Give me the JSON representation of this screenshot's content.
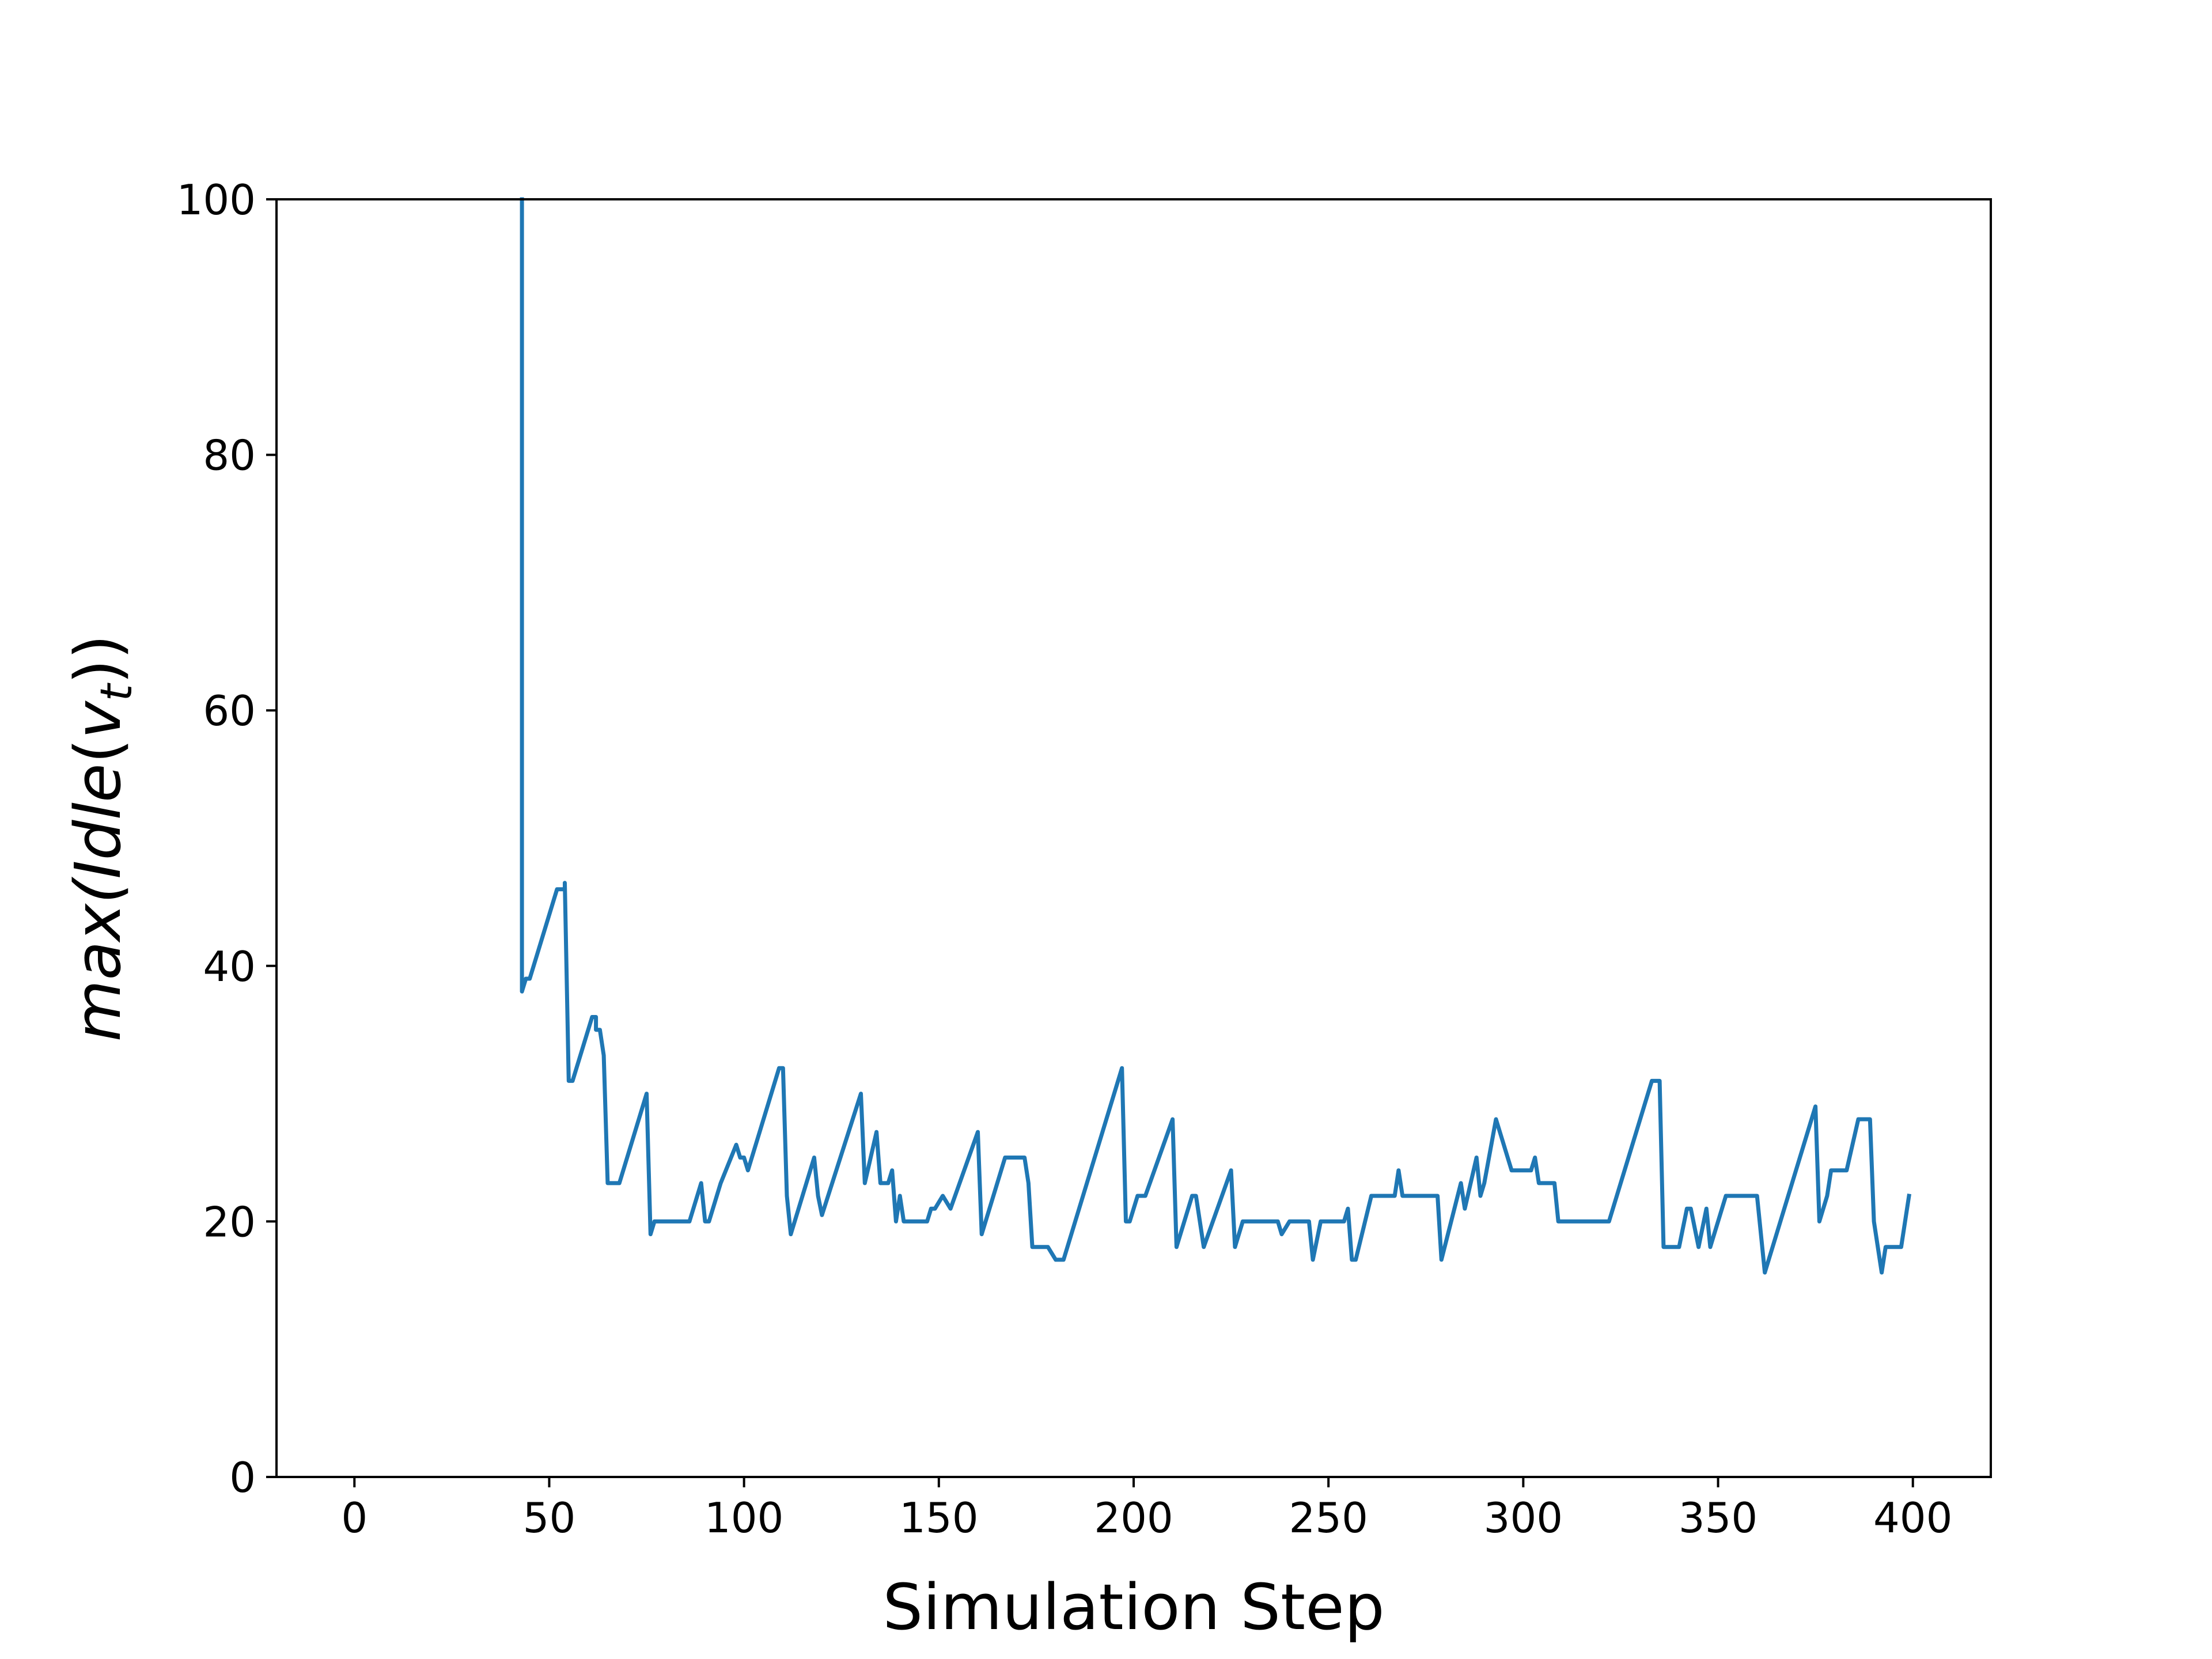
{
  "chart_data": {
    "type": "line",
    "xlabel": "Simulation Step",
    "ylabel_parts": {
      "func": "max(",
      "name": "Idle",
      "open": "(",
      "var": "v",
      "sub": "t",
      "close": "))"
    },
    "xlim": [
      -20,
      420
    ],
    "ylim": [
      0,
      100
    ],
    "xticks": [
      0,
      50,
      100,
      150,
      200,
      250,
      300,
      350,
      400
    ],
    "yticks": [
      0,
      20,
      40,
      60,
      80,
      100
    ],
    "grid": false,
    "series_color": "#1f77b4",
    "series": [
      {
        "x": [
          43,
          43,
          43,
          44,
          45,
          52,
          53,
          54,
          54,
          55,
          56,
          61,
          62,
          62,
          63,
          64,
          65,
          66,
          68,
          75,
          76,
          77,
          78,
          79,
          80,
          82,
          86,
          89,
          90,
          91,
          94,
          98,
          99,
          100,
          101,
          104,
          109,
          110,
          111,
          112,
          118,
          119,
          120,
          130,
          131,
          134,
          135,
          137,
          138,
          139,
          140,
          141,
          145,
          147,
          148,
          149,
          151,
          153,
          160,
          161,
          167,
          172,
          173,
          174,
          178,
          180,
          181,
          182,
          197,
          198,
          199,
          200,
          201,
          203,
          210,
          211,
          215,
          216,
          218,
          225,
          226,
          228,
          232,
          236,
          237,
          238,
          240,
          244,
          245,
          246,
          248,
          251,
          254,
          255,
          256,
          257,
          261,
          266,
          267,
          268,
          269,
          272,
          276,
          278,
          279,
          284,
          285,
          288,
          289,
          290,
          293,
          297,
          298,
          302,
          303,
          304,
          305,
          307,
          308,
          309,
          311,
          312,
          313,
          315,
          316,
          318,
          322,
          333,
          335,
          336,
          340,
          342,
          343,
          345,
          347,
          348,
          352,
          357,
          360,
          362,
          375,
          376,
          378,
          379,
          383,
          386,
          388,
          389,
          390,
          392,
          393,
          397,
          399
        ],
        "y": [
          100,
          38,
          38,
          39,
          39,
          46,
          46,
          46,
          46.5,
          31,
          31,
          36,
          36,
          35,
          35,
          33,
          23,
          23,
          23,
          30,
          19,
          20,
          20,
          20,
          20,
          20,
          20,
          23,
          20,
          20,
          23,
          26,
          25,
          25,
          24,
          27,
          32,
          32,
          22,
          19,
          25,
          22,
          20.5,
          30,
          23,
          27,
          23,
          23,
          24,
          20,
          22,
          20,
          20,
          20,
          21,
          21,
          22,
          21,
          27,
          19,
          25,
          25,
          23,
          18,
          18,
          17,
          17,
          17,
          32,
          20,
          20,
          21,
          22,
          22,
          28,
          18,
          22,
          22,
          18,
          24,
          18,
          20,
          20,
          20,
          20,
          19,
          20,
          20,
          20,
          17,
          20,
          20,
          20,
          21,
          17,
          17,
          22,
          22,
          22,
          24,
          22,
          22,
          22,
          22,
          17,
          23,
          21,
          25,
          22,
          23,
          28,
          24,
          24,
          24,
          25,
          23,
          23,
          23,
          23,
          20,
          20,
          20,
          20,
          20,
          20,
          20,
          20,
          31,
          31,
          18,
          18,
          21,
          21,
          18,
          21,
          18,
          22,
          22,
          22,
          16,
          29,
          20,
          22,
          24,
          24,
          28,
          28,
          28,
          20,
          16,
          18,
          18,
          22
        ]
      }
    ]
  }
}
